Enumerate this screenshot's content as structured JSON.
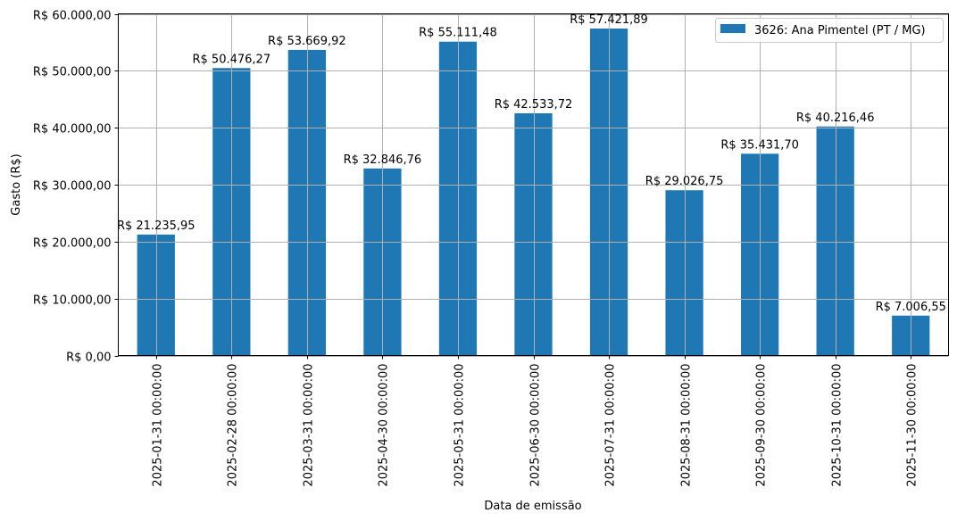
{
  "chart_data": {
    "type": "bar",
    "title": "",
    "xlabel": "Data de emissão",
    "ylabel": "Gasto (R$)",
    "ylim": [
      0,
      60000
    ],
    "grid": true,
    "legend_position": "upper right",
    "yticks": [
      0,
      10000,
      20000,
      30000,
      40000,
      50000,
      60000
    ],
    "ytick_labels": [
      "R$ 0,00",
      "R$ 10.000,00",
      "R$ 20.000,00",
      "R$ 30.000,00",
      "R$ 40.000,00",
      "R$ 50.000,00",
      "R$ 60.000,00"
    ],
    "categories": [
      "2025-01-31 00:00:00",
      "2025-02-28 00:00:00",
      "2025-03-31 00:00:00",
      "2025-04-30 00:00:00",
      "2025-05-31 00:00:00",
      "2025-06-30 00:00:00",
      "2025-07-31 00:00:00",
      "2025-08-31 00:00:00",
      "2025-09-30 00:00:00",
      "2025-10-31 00:00:00",
      "2025-11-30 00:00:00"
    ],
    "series": [
      {
        "name": "3626: Ana Pimentel (PT / MG)",
        "color": "#1f77b4",
        "values": [
          21235.95,
          50476.27,
          53669.92,
          32846.76,
          55111.48,
          42533.72,
          57421.89,
          29026.75,
          35431.7,
          40216.46,
          7006.55
        ],
        "labels": [
          "R$ 21.235,95",
          "R$ 50.476,27",
          "R$ 53.669,92",
          "R$ 32.846,76",
          "R$ 55.111,48",
          "R$ 42.533,72",
          "R$ 57.421,89",
          "R$ 29.026,75",
          "R$ 35.431,70",
          "R$ 40.216,46",
          "R$ 7.006,55"
        ]
      }
    ]
  },
  "colors": {
    "bar": "#1f77b4",
    "grid": "#b0b0b0",
    "axis": "#000000",
    "legend_border": "#cccccc"
  }
}
